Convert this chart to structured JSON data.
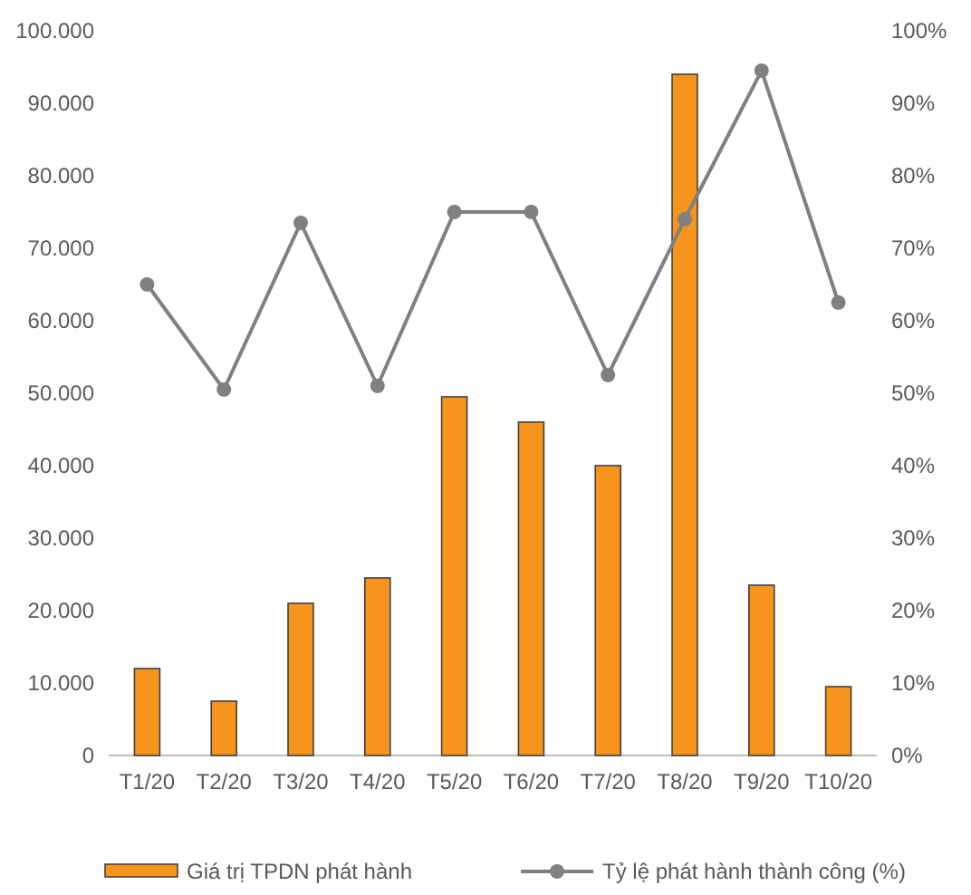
{
  "chart_data": {
    "type": "bar",
    "categories": [
      "T1/20",
      "T2/20",
      "T3/20",
      "T4/20",
      "T5/20",
      "T6/20",
      "T7/20",
      "T8/20",
      "T9/20",
      "T10/20"
    ],
    "series": [
      {
        "name": "Giá trị TPDN phát hành",
        "color": "#f7941d",
        "values": [
          12000,
          7500,
          21000,
          24500,
          49500,
          46000,
          40000,
          94000,
          23500,
          9500
        ]
      },
      {
        "name": "Tỷ lệ phát hành thành công (%)",
        "type": "line",
        "axis": "y2",
        "color": "#808080",
        "marker": "circle",
        "values": [
          65,
          50.5,
          73.5,
          51,
          75,
          75,
          52.5,
          74,
          94.5,
          62.5
        ]
      }
    ],
    "ylim": [
      0,
      100000
    ],
    "yticks": [
      {
        "value": 0,
        "label": "0"
      },
      {
        "value": 10000,
        "label": "10.000"
      },
      {
        "value": 20000,
        "label": "20.000"
      },
      {
        "value": 30000,
        "label": "30.000"
      },
      {
        "value": 40000,
        "label": "40.000"
      },
      {
        "value": 50000,
        "label": "50.000"
      },
      {
        "value": 60000,
        "label": "60.000"
      },
      {
        "value": 70000,
        "label": "70.000"
      },
      {
        "value": 80000,
        "label": "80.000"
      },
      {
        "value": 90000,
        "label": "90.000"
      },
      {
        "value": 100000,
        "label": "100.000"
      }
    ],
    "y2lim": [
      0,
      100
    ],
    "y2ticks": [
      {
        "value": 0,
        "label": "0%"
      },
      {
        "value": 10,
        "label": "10%"
      },
      {
        "value": 20,
        "label": "20%"
      },
      {
        "value": 30,
        "label": "30%"
      },
      {
        "value": 40,
        "label": "40%"
      },
      {
        "value": 50,
        "label": "50%"
      },
      {
        "value": 60,
        "label": "60%"
      },
      {
        "value": 70,
        "label": "70%"
      },
      {
        "value": 80,
        "label": "80%"
      },
      {
        "value": 90,
        "label": "90%"
      },
      {
        "value": 100,
        "label": "100%"
      }
    ],
    "grid": false,
    "legend": "bottom"
  }
}
